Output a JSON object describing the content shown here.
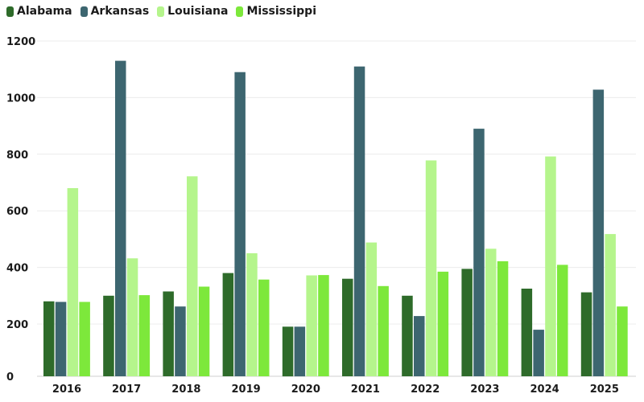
{
  "chart_data": {
    "type": "bar",
    "title": "",
    "xlabel": "",
    "ylabel": "",
    "categories": [
      "2016",
      "2017",
      "2018",
      "2019",
      "2020",
      "2021",
      "2022",
      "2023",
      "2024",
      "2025"
    ],
    "series": [
      {
        "name": "Alabama",
        "color": "#2e6b2a",
        "values": [
          280,
          300,
          315,
          380,
          190,
          360,
          300,
          395,
          325,
          312
        ]
      },
      {
        "name": "Arkansas",
        "color": "#3d6670",
        "values": [
          278,
          1130,
          262,
          1090,
          190,
          1110,
          228,
          890,
          178,
          1028
        ]
      },
      {
        "name": "Louisiana",
        "color": "#b5f58c",
        "values": [
          680,
          432,
          722,
          450,
          372,
          488,
          778,
          466,
          792,
          518
        ]
      },
      {
        "name": "Mississippi",
        "color": "#7de83b",
        "values": [
          278,
          302,
          332,
          357,
          373,
          334,
          385,
          422,
          409,
          262
        ]
      }
    ],
    "yticks": [
      "0",
      "200",
      "400",
      "600",
      "800",
      "1000",
      "1200"
    ],
    "ylim": [
      0,
      1200
    ],
    "axis_scale": "piecewise: label 0 spans full lower band, labels 200-1200 evenly spaced",
    "grid": true,
    "legend_position": "top-left"
  }
}
